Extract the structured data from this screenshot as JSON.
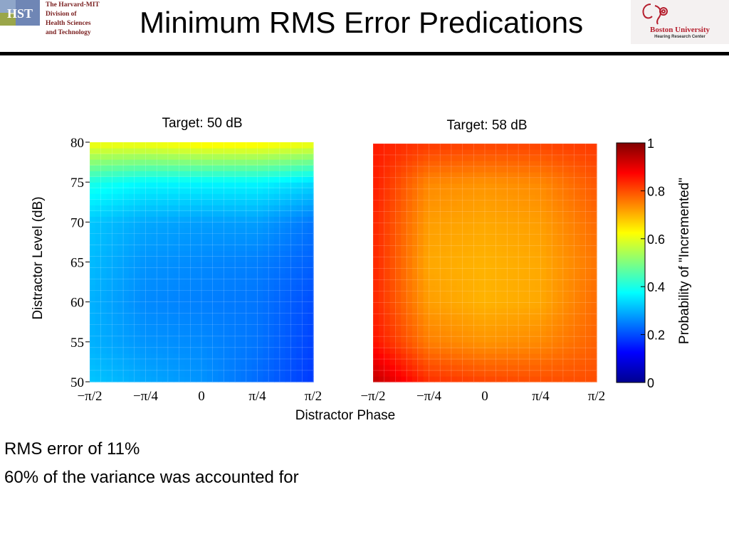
{
  "header": {
    "title": "Minimum RMS Error Predications",
    "hst": {
      "mark": "HST",
      "lines": [
        "The Harvard-MIT",
        "Division of",
        "Health Sciences",
        "and Technology"
      ]
    },
    "bu": {
      "name": "Boston University",
      "sub": "Hearing Research Center"
    }
  },
  "chart_data": {
    "type": "heatmap",
    "xlabel": "Distractor Phase",
    "ylabel": "Distractor Level (dB)",
    "x_ticks": [
      "−π/2",
      "−π/4",
      "0",
      "π/4",
      "π/2"
    ],
    "y_ticks": [
      "50",
      "55",
      "60",
      "65",
      "70",
      "75",
      "80"
    ],
    "xlim": [
      -1.5708,
      1.5708
    ],
    "ylim": [
      50,
      80
    ],
    "colormap": "jet",
    "colorbar": {
      "label": "Probability of \"Incremented\"",
      "ticks": [
        "0",
        "0.2",
        "0.4",
        "0.6",
        "0.8",
        "1"
      ],
      "range": [
        0,
        1
      ]
    },
    "panels": [
      {
        "title": "Target: 50 dB",
        "x": [
          -1.5708,
          -0.7854,
          0,
          0.7854,
          1.5708
        ],
        "y": [
          50,
          55,
          60,
          65,
          70,
          75,
          80
        ],
        "z": [
          [
            0.32,
            0.29,
            0.27,
            0.23,
            0.18
          ],
          [
            0.3,
            0.27,
            0.26,
            0.24,
            0.19
          ],
          [
            0.3,
            0.26,
            0.25,
            0.24,
            0.2
          ],
          [
            0.31,
            0.27,
            0.26,
            0.25,
            0.22
          ],
          [
            0.32,
            0.29,
            0.28,
            0.28,
            0.24
          ],
          [
            0.4,
            0.37,
            0.37,
            0.37,
            0.34
          ],
          [
            0.62,
            0.62,
            0.64,
            0.64,
            0.62
          ]
        ]
      },
      {
        "title": "Target: 58 dB",
        "x": [
          -1.5708,
          -0.7854,
          0,
          0.7854,
          1.5708
        ],
        "y": [
          50,
          55,
          60,
          65,
          70,
          75,
          80
        ],
        "z": [
          [
            0.94,
            0.83,
            0.81,
            0.8,
            0.8
          ],
          [
            0.86,
            0.75,
            0.73,
            0.74,
            0.78
          ],
          [
            0.84,
            0.72,
            0.7,
            0.71,
            0.77
          ],
          [
            0.84,
            0.71,
            0.7,
            0.71,
            0.76
          ],
          [
            0.84,
            0.72,
            0.71,
            0.72,
            0.77
          ],
          [
            0.85,
            0.74,
            0.73,
            0.74,
            0.79
          ],
          [
            0.85,
            0.82,
            0.81,
            0.81,
            0.82
          ]
        ]
      }
    ]
  },
  "notes": [
    "RMS error of 11%",
    "60% of the variance was accounted for"
  ]
}
